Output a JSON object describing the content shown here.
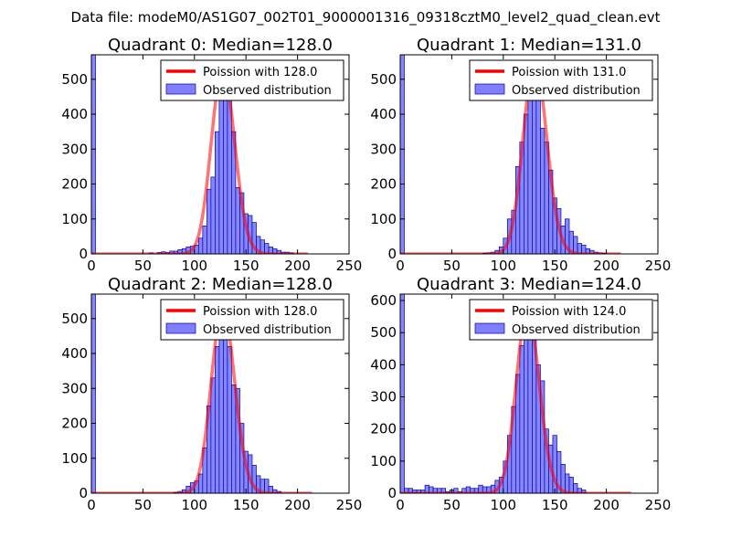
{
  "figure": {
    "suptitle": "Data file: modeM0/AS1G07_002T01_9000001316_09318cztM0_level2_quad_clean.evt"
  },
  "chart_data": [
    {
      "type": "bar",
      "title": "Quadrant 0: Median=128.0",
      "xlim": [
        0,
        250
      ],
      "ylim": [
        0,
        570
      ],
      "xticks": [
        0,
        50,
        100,
        150,
        200,
        250
      ],
      "yticks": [
        0,
        100,
        200,
        300,
        400,
        500
      ],
      "legend": {
        "placement": "top-right",
        "line_label": "Poission with 128.0",
        "bar_label": "Observed distribution"
      },
      "colors": {
        "line": "#ff0000",
        "bar": "#7f7fff",
        "bar_edge": "#0000aa"
      },
      "bin_width": 4,
      "bin_starts": [
        0,
        56,
        64,
        68,
        72,
        76,
        80,
        84,
        88,
        92,
        96,
        100,
        104,
        108,
        112,
        116,
        120,
        124,
        128,
        132,
        136,
        140,
        144,
        148,
        152,
        156,
        160,
        164,
        168,
        172,
        176,
        180,
        184,
        188,
        192
      ],
      "counts": [
        570,
        3,
        4,
        6,
        4,
        8,
        8,
        12,
        15,
        20,
        22,
        25,
        45,
        80,
        185,
        220,
        350,
        450,
        530,
        480,
        350,
        190,
        175,
        115,
        110,
        90,
        50,
        40,
        30,
        20,
        15,
        10,
        5,
        5,
        3
      ],
      "poisson": {
        "mean": 128.0,
        "x_range": [
          0,
          210
        ]
      }
    },
    {
      "type": "bar",
      "title": "Quadrant 1: Median=131.0",
      "xlim": [
        0,
        250
      ],
      "ylim": [
        0,
        570
      ],
      "xticks": [
        0,
        50,
        100,
        150,
        200,
        250
      ],
      "yticks": [
        0,
        100,
        200,
        300,
        400,
        500
      ],
      "legend": {
        "placement": "top-right",
        "line_label": "Poission with 131.0",
        "bar_label": "Observed distribution"
      },
      "colors": {
        "line": "#ff0000",
        "bar": "#7f7fff",
        "bar_edge": "#0000aa"
      },
      "bin_width": 4,
      "bin_starts": [
        0,
        80,
        84,
        88,
        92,
        96,
        100,
        104,
        108,
        112,
        116,
        120,
        124,
        128,
        132,
        136,
        140,
        144,
        148,
        152,
        156,
        160,
        164,
        168,
        172,
        176,
        180,
        184,
        188,
        192,
        196
      ],
      "counts": [
        570,
        2,
        3,
        5,
        10,
        20,
        45,
        100,
        125,
        250,
        320,
        400,
        520,
        550,
        440,
        360,
        320,
        240,
        160,
        130,
        80,
        100,
        65,
        50,
        30,
        25,
        15,
        10,
        5,
        3,
        2
      ],
      "poisson": {
        "mean": 131.0,
        "x_range": [
          0,
          214
        ]
      }
    },
    {
      "type": "bar",
      "title": "Quadrant 2: Median=128.0",
      "xlim": [
        0,
        250
      ],
      "ylim": [
        0,
        570
      ],
      "xticks": [
        0,
        50,
        100,
        150,
        200,
        250
      ],
      "yticks": [
        0,
        100,
        200,
        300,
        400,
        500
      ],
      "legend": {
        "placement": "top-right",
        "line_label": "Poission with 128.0",
        "bar_label": "Observed distribution"
      },
      "colors": {
        "line": "#ff0000",
        "bar": "#7f7fff",
        "bar_edge": "#0000aa"
      },
      "bin_width": 4,
      "bin_starts": [
        0,
        80,
        84,
        88,
        92,
        96,
        100,
        104,
        108,
        112,
        116,
        120,
        124,
        128,
        132,
        136,
        140,
        144,
        148,
        152,
        156,
        160,
        164,
        168,
        172,
        176,
        180
      ],
      "counts": [
        570,
        2,
        5,
        10,
        20,
        30,
        35,
        55,
        130,
        250,
        330,
        420,
        520,
        530,
        420,
        310,
        300,
        200,
        120,
        110,
        80,
        50,
        40,
        40,
        20,
        10,
        5
      ],
      "poisson": {
        "mean": 128.0,
        "x_range": [
          0,
          214
        ]
      }
    },
    {
      "type": "bar",
      "title": "Quadrant 3: Median=124.0",
      "xlim": [
        0,
        250
      ],
      "ylim": [
        0,
        620
      ],
      "xticks": [
        0,
        50,
        100,
        150,
        200,
        250
      ],
      "yticks": [
        0,
        100,
        200,
        300,
        400,
        500,
        600
      ],
      "legend": {
        "placement": "top-right",
        "line_label": "Poission with 124.0",
        "bar_label": "Observed distribution"
      },
      "colors": {
        "line": "#ff0000",
        "bar": "#7f7fff",
        "bar_edge": "#0000aa"
      },
      "bin_width": 4,
      "bin_starts": [
        0,
        4,
        8,
        12,
        16,
        20,
        24,
        28,
        32,
        36,
        40,
        44,
        48,
        52,
        56,
        60,
        64,
        68,
        72,
        76,
        80,
        84,
        88,
        92,
        96,
        100,
        104,
        108,
        112,
        116,
        120,
        124,
        128,
        132,
        136,
        140,
        144,
        148,
        152,
        156,
        160,
        164,
        168,
        172,
        176
      ],
      "counts": [
        620,
        15,
        15,
        10,
        10,
        10,
        25,
        20,
        15,
        15,
        15,
        5,
        10,
        15,
        5,
        15,
        20,
        15,
        15,
        25,
        20,
        20,
        25,
        40,
        50,
        100,
        180,
        270,
        370,
        460,
        560,
        570,
        490,
        400,
        350,
        200,
        150,
        180,
        130,
        90,
        60,
        50,
        30,
        15,
        10
      ],
      "poisson": {
        "mean": 124.0,
        "x_range": [
          0,
          224
        ]
      }
    }
  ]
}
